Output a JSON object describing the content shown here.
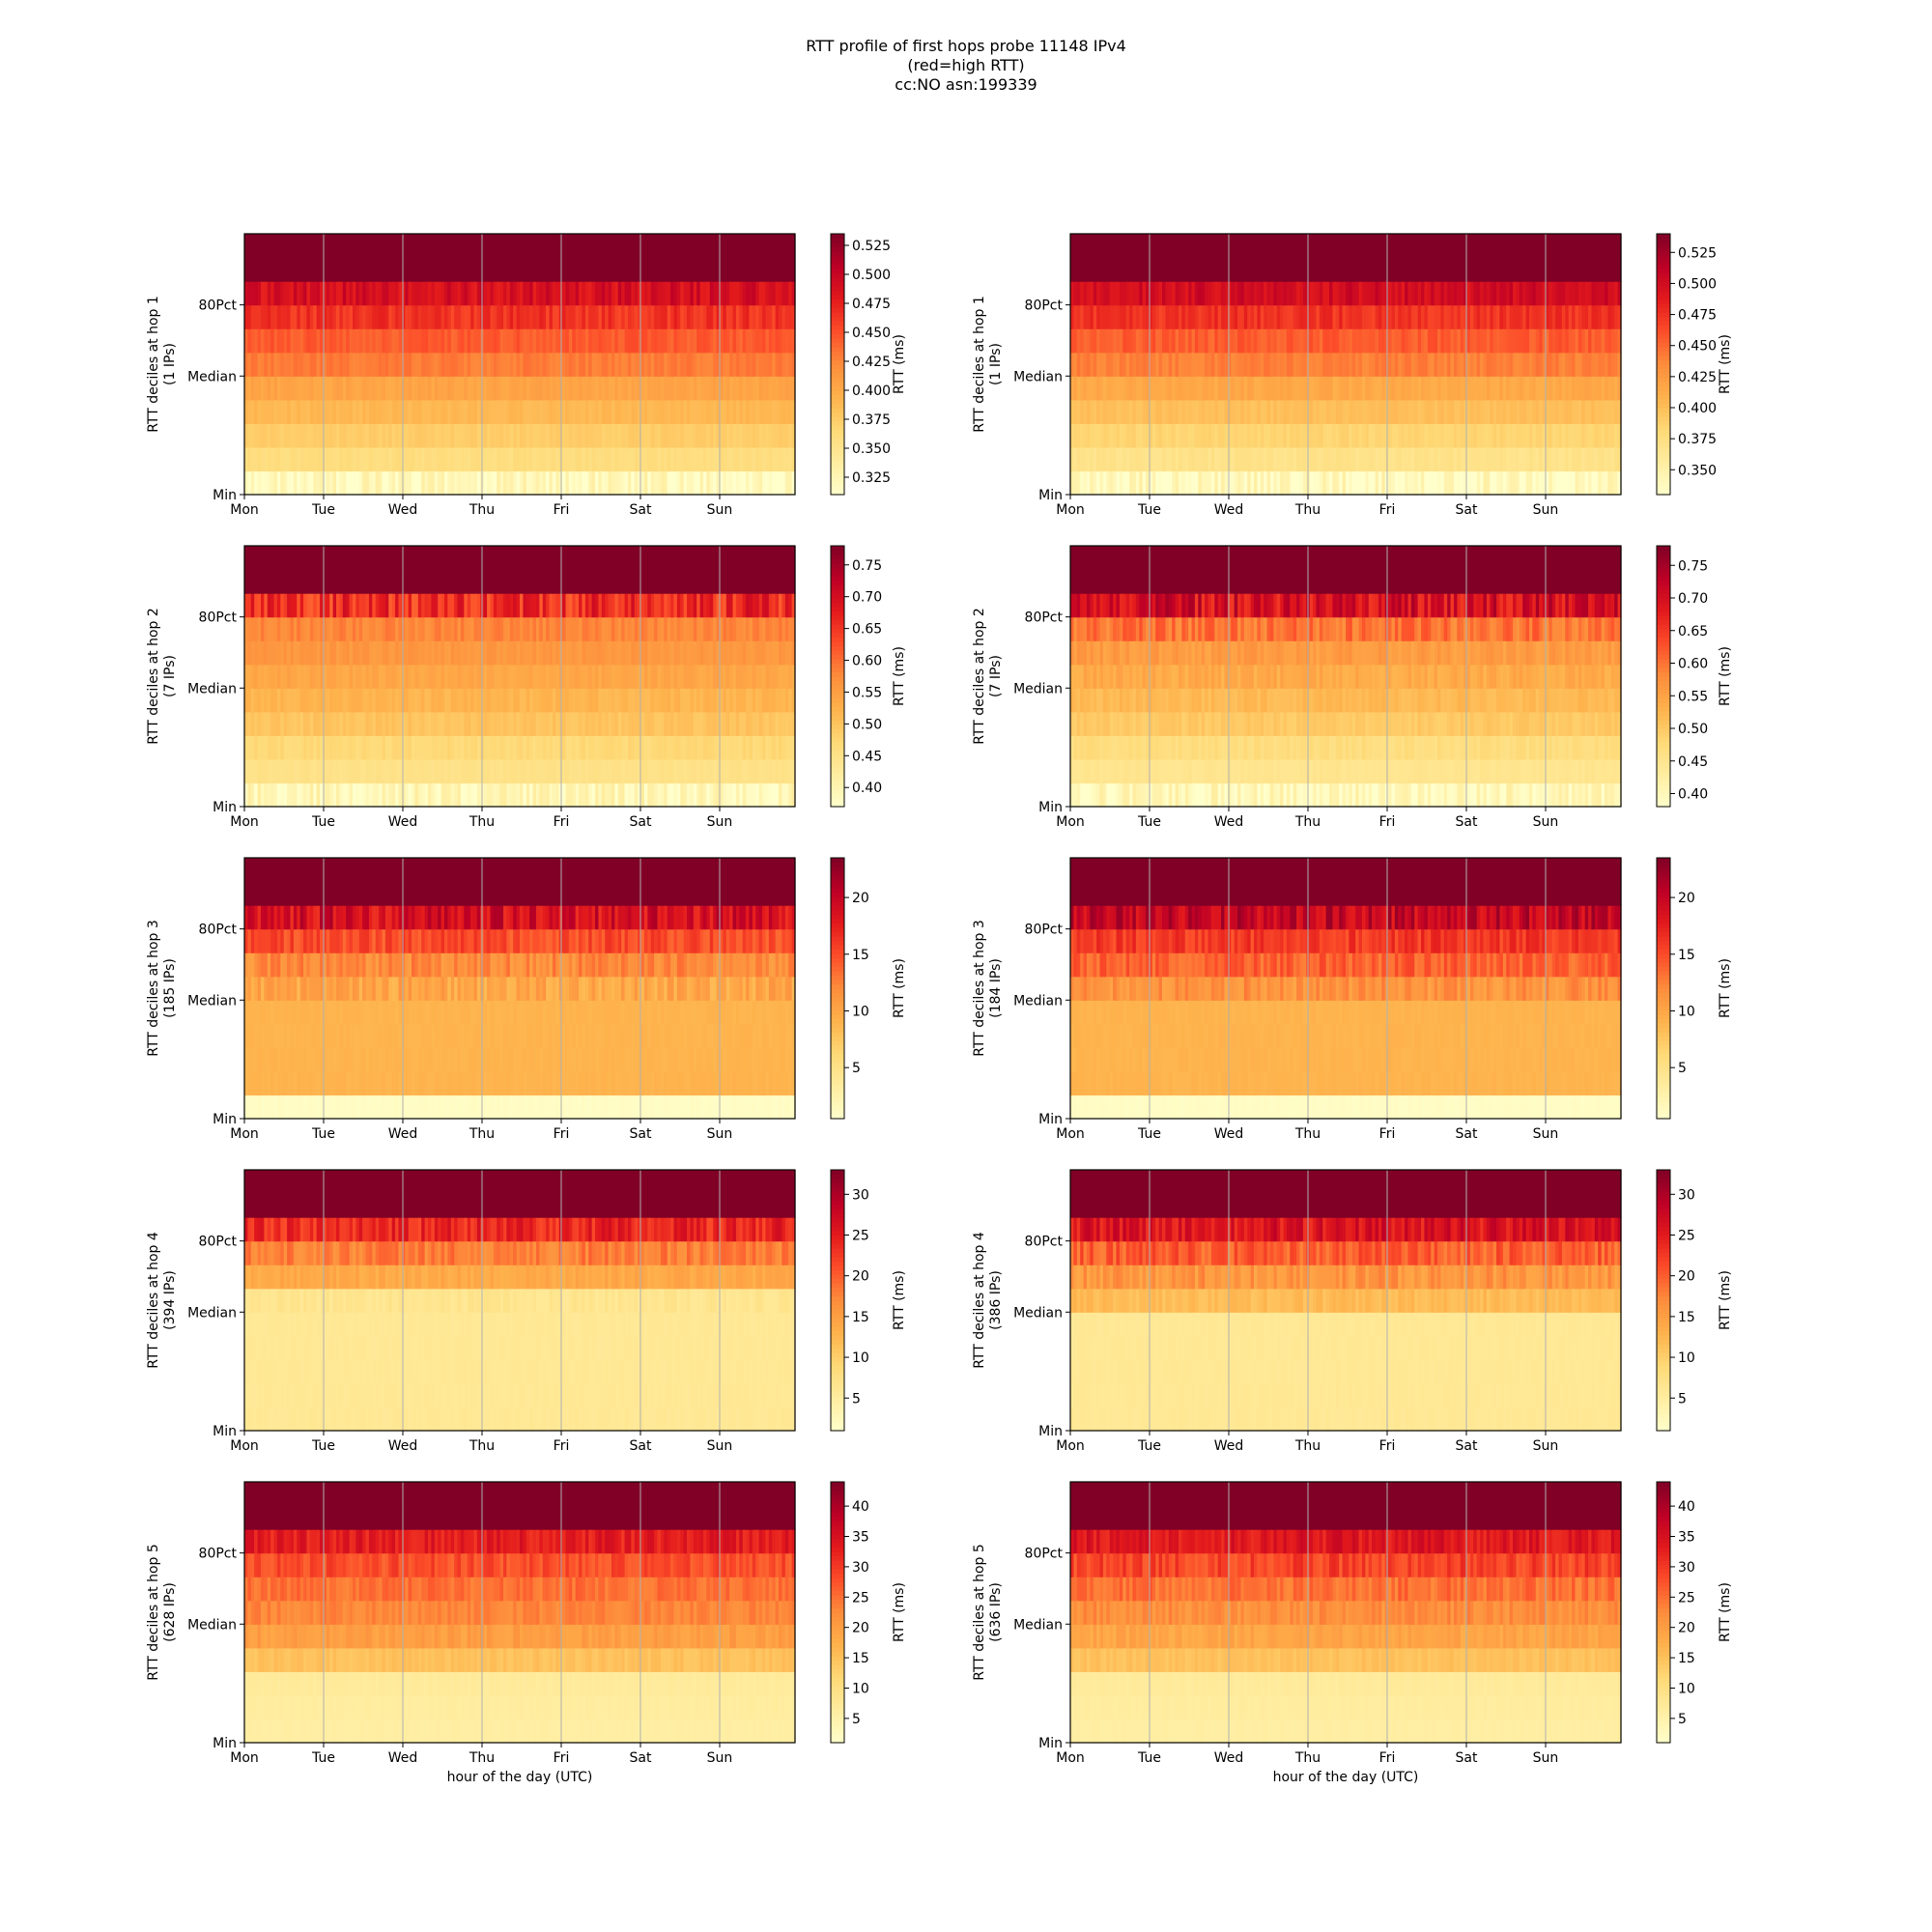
{
  "title_lines": [
    "RTT profile of first hops probe 11148 IPv4",
    "(red=high RTT)",
    "cc:NO asn:199339"
  ],
  "colors": {
    "cmap": [
      "#ffffcc",
      "#ffeda0",
      "#fed976",
      "#feb24c",
      "#fd8d3c",
      "#fc4e2a",
      "#e31a1c",
      "#bd0026",
      "#800026"
    ],
    "grid": "#b0b0b0",
    "axis": "#000000"
  },
  "chart_data": [
    {
      "type": "heatmap",
      "hop": 1,
      "column": "left",
      "ylabel": "RTT deciles at hop 1",
      "ylabel_sub": "(1 IPs)",
      "yticks": [
        "Min",
        "Median",
        "80Pct"
      ],
      "xticks": [
        "Mon",
        "Tue",
        "Wed",
        "Thu",
        "Fri",
        "Sat",
        "Sun"
      ],
      "xlabel": "",
      "colorbar": {
        "label": "RTT (ms)",
        "min": 0.31,
        "max": 0.535,
        "ticks": [
          "0.325",
          "0.350",
          "0.375",
          "0.400",
          "0.425",
          "0.450",
          "0.475",
          "0.500",
          "0.525"
        ]
      },
      "decile_values_ms": [
        0.318,
        0.36,
        0.375,
        0.39,
        0.405,
        0.43,
        0.445,
        0.465,
        0.49,
        0.535
      ],
      "decile_noise": [
        0.02,
        0.004,
        0.004,
        0.004,
        0.005,
        0.006,
        0.008,
        0.012,
        0.015,
        0
      ]
    },
    {
      "type": "heatmap",
      "hop": 1,
      "column": "right",
      "ylabel": "RTT deciles at hop 1",
      "ylabel_sub": "(1 IPs)",
      "yticks": [
        "Min",
        "Median",
        "80Pct"
      ],
      "xticks": [
        "Mon",
        "Tue",
        "Wed",
        "Thu",
        "Fri",
        "Sat",
        "Sun"
      ],
      "xlabel": "",
      "colorbar": {
        "label": "RTT (ms)",
        "min": 0.33,
        "max": 0.54,
        "ticks": [
          "0.350",
          "0.375",
          "0.400",
          "0.425",
          "0.450",
          "0.475",
          "0.500",
          "0.525"
        ]
      },
      "decile_values_ms": [
        0.338,
        0.37,
        0.385,
        0.4,
        0.415,
        0.44,
        0.455,
        0.475,
        0.5,
        0.54
      ],
      "decile_noise": [
        0.018,
        0.004,
        0.004,
        0.004,
        0.005,
        0.006,
        0.008,
        0.01,
        0.012,
        0
      ]
    },
    {
      "type": "heatmap",
      "hop": 2,
      "column": "left",
      "ylabel": "RTT deciles at hop 2",
      "ylabel_sub": "(7 IPs)",
      "yticks": [
        "Min",
        "Median",
        "80Pct"
      ],
      "xticks": [
        "Mon",
        "Tue",
        "Wed",
        "Thu",
        "Fri",
        "Sat",
        "Sun"
      ],
      "xlabel": "",
      "colorbar": {
        "label": "RTT (ms)",
        "min": 0.37,
        "max": 0.78,
        "ticks": [
          "0.40",
          "0.45",
          "0.50",
          "0.55",
          "0.60",
          "0.65",
          "0.70",
          "0.75"
        ]
      },
      "decile_values_ms": [
        0.395,
        0.45,
        0.47,
        0.5,
        0.52,
        0.54,
        0.56,
        0.58,
        0.66,
        0.78
      ],
      "decile_noise": [
        0.03,
        0.005,
        0.01,
        0.01,
        0.01,
        0.01,
        0.01,
        0.015,
        0.05,
        0
      ]
    },
    {
      "type": "heatmap",
      "hop": 2,
      "column": "right",
      "ylabel": "RTT deciles at hop 2",
      "ylabel_sub": "(7 IPs)",
      "yticks": [
        "Min",
        "Median",
        "80Pct"
      ],
      "xticks": [
        "Mon",
        "Tue",
        "Wed",
        "Thu",
        "Fri",
        "Sat",
        "Sun"
      ],
      "xlabel": "",
      "colorbar": {
        "label": "RTT (ms)",
        "min": 0.38,
        "max": 0.78,
        "ticks": [
          "0.40",
          "0.45",
          "0.50",
          "0.55",
          "0.60",
          "0.65",
          "0.70",
          "0.75"
        ]
      },
      "decile_values_ms": [
        0.4,
        0.45,
        0.47,
        0.5,
        0.52,
        0.54,
        0.56,
        0.6,
        0.7,
        0.78
      ],
      "decile_noise": [
        0.03,
        0.005,
        0.01,
        0.01,
        0.01,
        0.015,
        0.015,
        0.03,
        0.05,
        0
      ]
    },
    {
      "type": "heatmap",
      "hop": 3,
      "column": "left",
      "ylabel": "RTT deciles at hop 3",
      "ylabel_sub": "(185 IPs)",
      "yticks": [
        "Min",
        "Median",
        "80Pct"
      ],
      "xticks": [
        "Mon",
        "Tue",
        "Wed",
        "Thu",
        "Fri",
        "Sat",
        "Sun"
      ],
      "xlabel": "",
      "colorbar": {
        "label": "RTT (ms)",
        "min": 0.5,
        "max": 23.5,
        "ticks": [
          "5",
          "10",
          "15",
          "20"
        ]
      },
      "decile_values_ms": [
        1.0,
        9.0,
        9.0,
        9.0,
        9.0,
        10.0,
        12.0,
        15.0,
        19.0,
        23.5
      ],
      "decile_noise": [
        0.2,
        0.2,
        0.2,
        0.2,
        0.2,
        1.5,
        1.5,
        1.5,
        2.5,
        0
      ]
    },
    {
      "type": "heatmap",
      "hop": 3,
      "column": "right",
      "ylabel": "RTT deciles at hop 3",
      "ylabel_sub": "(184 IPs)",
      "yticks": [
        "Min",
        "Median",
        "80Pct"
      ],
      "xticks": [
        "Mon",
        "Tue",
        "Wed",
        "Thu",
        "Fri",
        "Sat",
        "Sun"
      ],
      "xlabel": "",
      "colorbar": {
        "label": "RTT (ms)",
        "min": 0.5,
        "max": 23.5,
        "ticks": [
          "5",
          "10",
          "15",
          "20"
        ]
      },
      "decile_values_ms": [
        1.0,
        9.0,
        9.0,
        9.0,
        9.0,
        11.5,
        14.0,
        16.0,
        20.0,
        23.5
      ],
      "decile_noise": [
        0.2,
        0.2,
        0.2,
        0.2,
        0.2,
        1.5,
        1.5,
        1.5,
        2.5,
        0
      ]
    },
    {
      "type": "heatmap",
      "hop": 4,
      "column": "left",
      "ylabel": "RTT deciles at hop 4",
      "ylabel_sub": "(394 IPs)",
      "yticks": [
        "Min",
        "Median",
        "80Pct"
      ],
      "xticks": [
        "Mon",
        "Tue",
        "Wed",
        "Thu",
        "Fri",
        "Sat",
        "Sun"
      ],
      "xlabel": "",
      "colorbar": {
        "label": "RTT (ms)",
        "min": 1.0,
        "max": 33.0,
        "ticks": [
          "5",
          "10",
          "15",
          "20",
          "25",
          "30"
        ]
      },
      "decile_values_ms": [
        6.0,
        6.0,
        6.0,
        6.0,
        6.0,
        6.5,
        14.0,
        18.0,
        24.0,
        33.0
      ],
      "decile_noise": [
        0.3,
        0.2,
        0.2,
        0.2,
        0.2,
        0.8,
        1.0,
        2.0,
        3.0,
        0
      ]
    },
    {
      "type": "heatmap",
      "hop": 4,
      "column": "right",
      "ylabel": "RTT deciles at hop 4",
      "ylabel_sub": "(386 IPs)",
      "yticks": [
        "Min",
        "Median",
        "80Pct"
      ],
      "xticks": [
        "Mon",
        "Tue",
        "Wed",
        "Thu",
        "Fri",
        "Sat",
        "Sun"
      ],
      "xlabel": "",
      "colorbar": {
        "label": "RTT (ms)",
        "min": 1.0,
        "max": 33.0,
        "ticks": [
          "5",
          "10",
          "15",
          "20",
          "25",
          "30"
        ]
      },
      "decile_values_ms": [
        6.0,
        6.0,
        6.0,
        6.0,
        6.0,
        12.0,
        16.0,
        20.0,
        26.0,
        33.0
      ],
      "decile_noise": [
        0.3,
        0.2,
        0.2,
        0.2,
        0.2,
        1.0,
        2.0,
        2.5,
        3.0,
        0
      ]
    },
    {
      "type": "heatmap",
      "hop": 5,
      "column": "left",
      "ylabel": "RTT deciles at hop 5",
      "ylabel_sub": "(628 IPs)",
      "yticks": [
        "Min",
        "Median",
        "80Pct"
      ],
      "xticks": [
        "Mon",
        "Tue",
        "Wed",
        "Thu",
        "Fri",
        "Sat",
        "Sun"
      ],
      "xlabel": "hour of the day (UTC)",
      "colorbar": {
        "label": "RTT (ms)",
        "min": 1.0,
        "max": 44.0,
        "ticks": [
          "5",
          "10",
          "15",
          "20",
          "25",
          "30",
          "35",
          "40"
        ]
      },
      "decile_values_ms": [
        6.0,
        6.5,
        7.0,
        15.0,
        20.0,
        23.0,
        25.0,
        28.0,
        33.0,
        44.0
      ],
      "decile_noise": [
        0.3,
        0.3,
        0.3,
        1.0,
        1.5,
        1.5,
        2.0,
        2.5,
        3.0,
        0
      ]
    },
    {
      "type": "heatmap",
      "hop": 5,
      "column": "right",
      "ylabel": "RTT deciles at hop 5",
      "ylabel_sub": "(636 IPs)",
      "yticks": [
        "Min",
        "Median",
        "80Pct"
      ],
      "xticks": [
        "Mon",
        "Tue",
        "Wed",
        "Thu",
        "Fri",
        "Sat",
        "Sun"
      ],
      "xlabel": "hour of the day (UTC)",
      "colorbar": {
        "label": "RTT (ms)",
        "min": 1.0,
        "max": 44.0,
        "ticks": [
          "5",
          "10",
          "15",
          "20",
          "25",
          "30",
          "35",
          "40"
        ]
      },
      "decile_values_ms": [
        6.0,
        6.5,
        7.0,
        15.0,
        19.0,
        22.0,
        25.0,
        29.0,
        34.0,
        44.0
      ],
      "decile_noise": [
        0.3,
        0.3,
        0.3,
        1.0,
        1.5,
        2.0,
        2.5,
        3.0,
        3.0,
        0
      ]
    }
  ]
}
